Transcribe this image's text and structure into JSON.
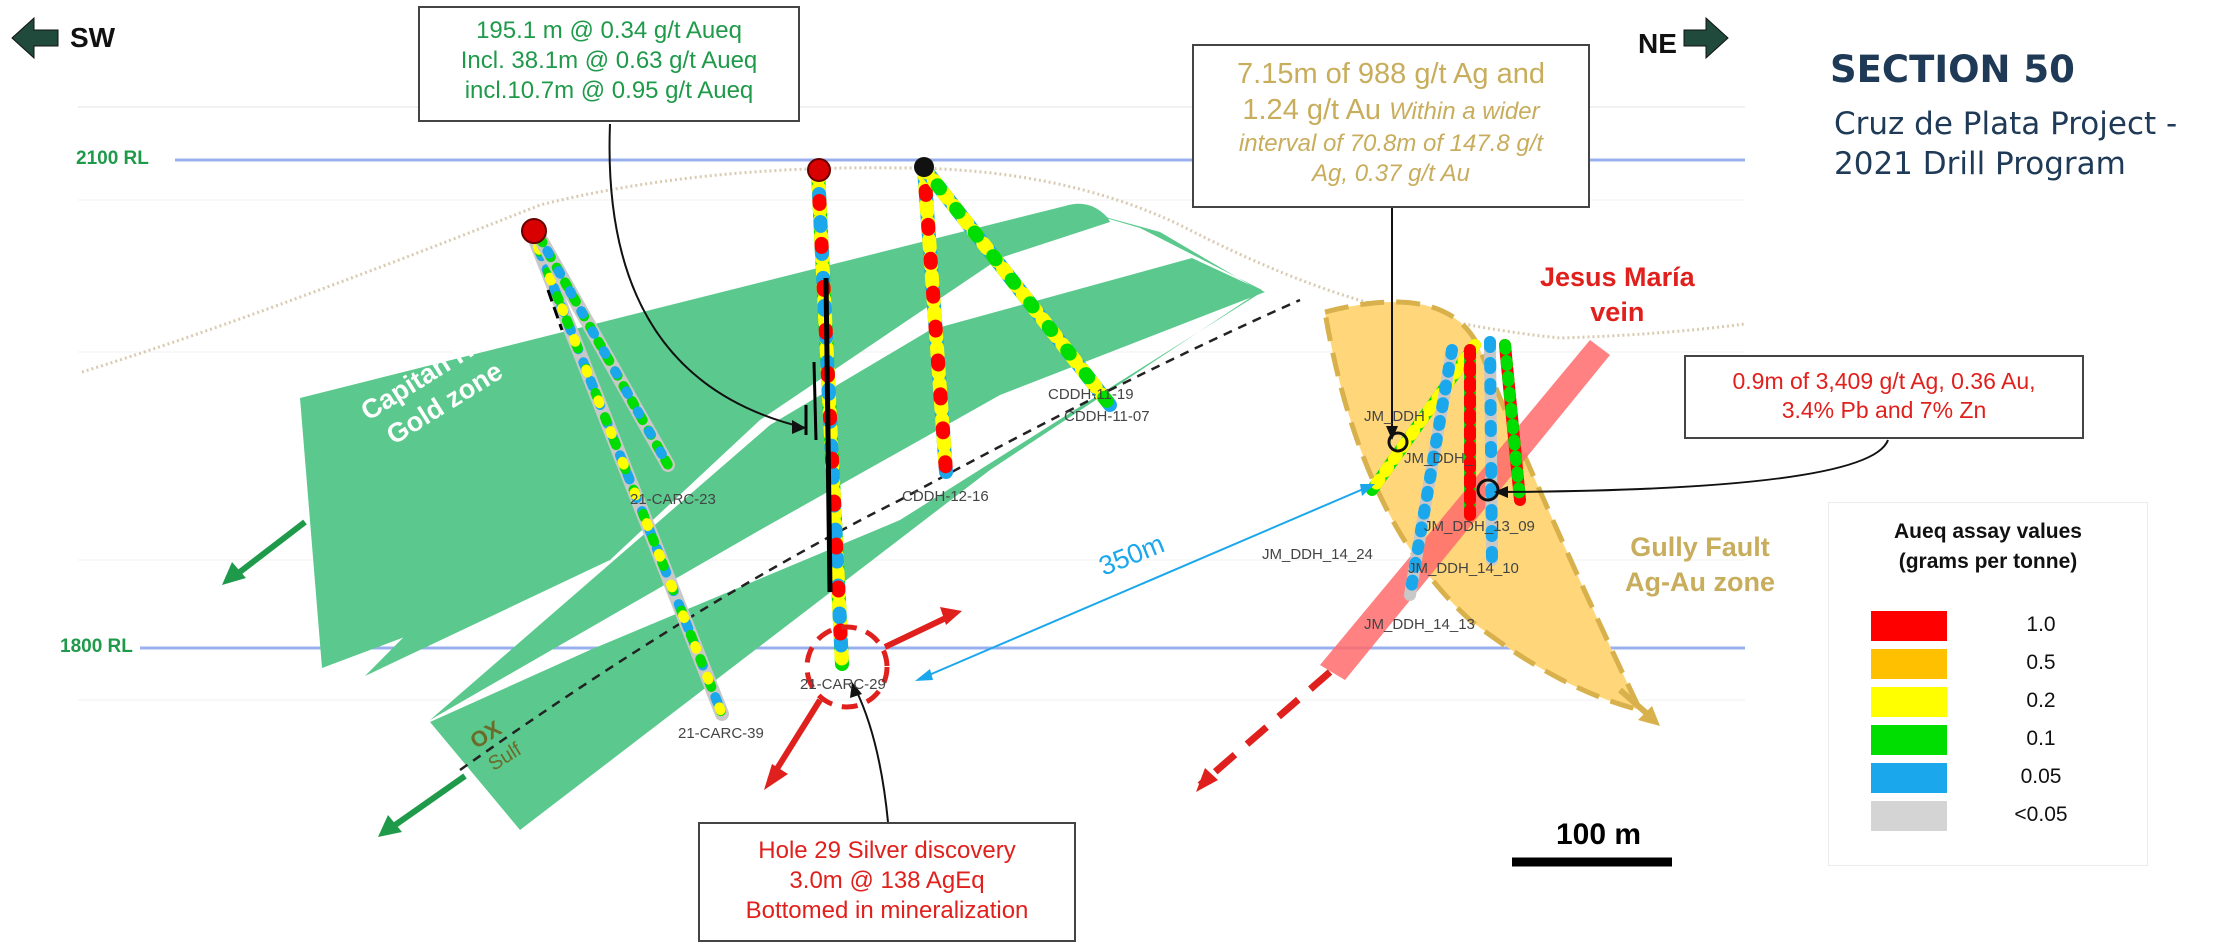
{
  "direction": {
    "left": "SW",
    "right": "NE"
  },
  "section_title": "SECTION 50",
  "project_subtitle_line1": "Cruz de Plata Project  -",
  "project_subtitle_line2": "2021 Drill Program",
  "elevations": {
    "upper": "2100 RL",
    "lower": "1800 RL"
  },
  "callouts": {
    "top_left": {
      "line1": "195.1 m @ 0.34 g/t Aueq",
      "line2": "Incl. 38.1m @ 0.63 g/t Aueq",
      "line3": "incl.10.7m @ 0.95 g/t Aueq",
      "color": "#1f9a4a"
    },
    "top_right": {
      "line1": "7.15m of 988 g/t Ag and",
      "line2_main": "1.24 g/t Au ",
      "line2_italic": "Within a wider",
      "line3": "interval of 70.8m of 147.8 g/t",
      "line4": "Ag, 0.37 g/t Au",
      "color": "#c8ad5c"
    },
    "right": {
      "line1": "0.9m of 3,409 g/t Ag, 0.36 Au,",
      "line2": "3.4% Pb and 7% Zn",
      "color": "#e0201c"
    },
    "bottom": {
      "line1": "Hole 29 Silver discovery",
      "line2": "3.0m @ 138 AgEq",
      "line3": "Bottomed in mineralization",
      "color": "#e0201c"
    }
  },
  "zones": {
    "capitan_line1": "Capitan Hill",
    "capitan_line2": "Gold zone",
    "jesus_line1": "Jesus María",
    "jesus_line2": "vein",
    "gully_line1": "Gully Fault",
    "gully_line2": "Ag-Au zone",
    "ox": "OX",
    "sulf": "Sulf"
  },
  "distance_label": "350m",
  "scale_label": "100 m",
  "hole_labels": {
    "carc23": "21-CARC-23",
    "carc39": "21-CARC-39",
    "carc29": "21-CARC-29",
    "cddh1216": "CDDH-12-16",
    "cddh19": "CDDH-11-19",
    "cddh1107": "CDDH-11-07",
    "jm24": "JM_DDH_14_24",
    "jm10": "JM_DDH_14_10",
    "jm13": "JM_DDH_14_13",
    "jm09": "JM_DDH_13_09",
    "jm_a": "JM_DDH_",
    "jm_b": "JM_DDH"
  },
  "legend": {
    "title_line1": "Aueq assay values",
    "title_line2": "(grams per tonne)",
    "rows": [
      {
        "color": "#ff0000",
        "value": "1.0"
      },
      {
        "color": "#ffc000",
        "value": "0.5"
      },
      {
        "color": "#ffff00",
        "value": "0.2"
      },
      {
        "color": "#00dd00",
        "value": "0.1"
      },
      {
        "color": "#1aa7ec",
        "value": "0.05"
      },
      {
        "color": "#d4d4d4",
        "value": "<0.05"
      }
    ]
  },
  "colors": {
    "zone_green": "#5bc98d",
    "rl_line": "#9ab0ee",
    "dark_green": "#1f9a4a",
    "gold": "#c8ad5c",
    "red": "#e0201c",
    "navy": "#1f3a56",
    "blue_line": "#1aa7ec"
  }
}
